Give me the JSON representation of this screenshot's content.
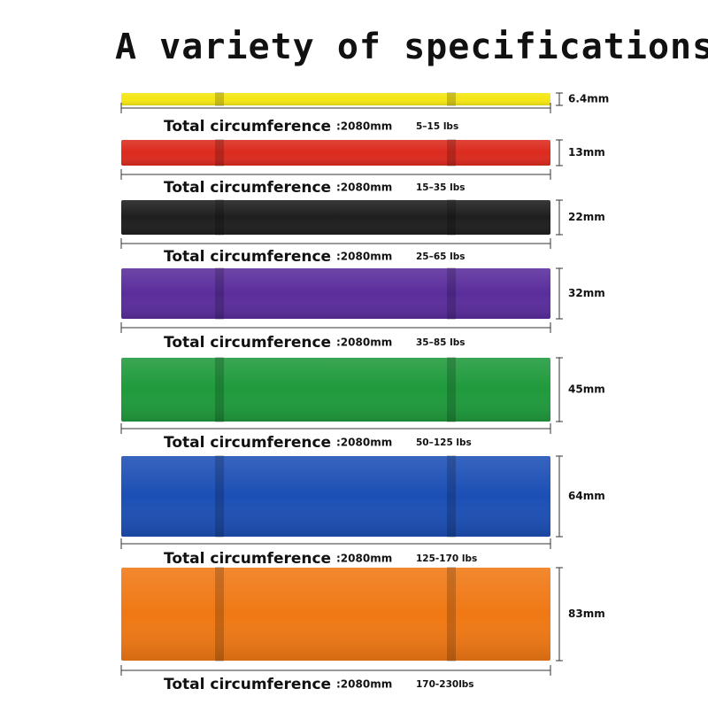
{
  "title": "A variety of specifications",
  "bands": [
    {
      "color": "#f5e614",
      "thickness": "6.4mm",
      "circumference_label": "Total circumference",
      "length": ":2080mm",
      "resistance": "5–15 lbs"
    },
    {
      "color": "#dc2a1e",
      "thickness": "13mm",
      "circumference_label": "Total circumference",
      "length": ":2080mm",
      "resistance": "15–35 lbs"
    },
    {
      "color": "#1e1e1e",
      "thickness": "22mm",
      "circumference_label": "Total circumference",
      "length": ":2080mm",
      "resistance": "25–65 lbs"
    },
    {
      "color": "#5a2d9c",
      "thickness": "32mm",
      "circumference_label": "Total circumference",
      "length": ":2080mm",
      "resistance": "35–85 lbs"
    },
    {
      "color": "#1f9a3c",
      "thickness": "45mm",
      "circumference_label": "Total circumference",
      "length": ":2080mm",
      "resistance": "50–125 lbs"
    },
    {
      "color": "#1c4fb5",
      "thickness": "64mm",
      "circumference_label": "Total circumference",
      "length": ":2080mm",
      "resistance": "125-170 lbs"
    },
    {
      "color": "#f07814",
      "thickness": "83mm",
      "circumference_label": "Total circumference",
      "length": ":2080mm",
      "resistance": "170-230lbs"
    }
  ]
}
